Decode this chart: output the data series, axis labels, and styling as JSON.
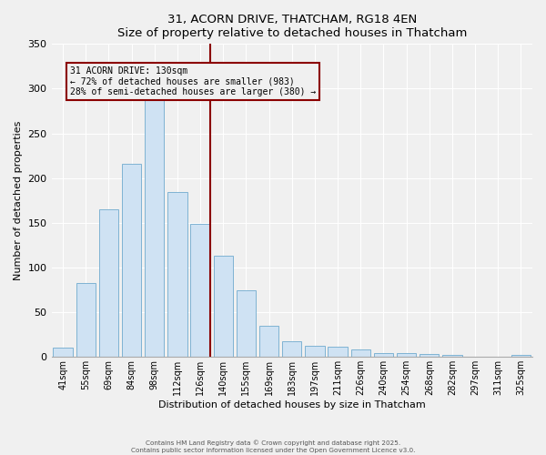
{
  "title": "31, ACORN DRIVE, THATCHAM, RG18 4EN",
  "subtitle": "Size of property relative to detached houses in Thatcham",
  "xlabel": "Distribution of detached houses by size in Thatcham",
  "ylabel": "Number of detached properties",
  "bar_labels": [
    "41sqm",
    "55sqm",
    "69sqm",
    "84sqm",
    "98sqm",
    "112sqm",
    "126sqm",
    "140sqm",
    "155sqm",
    "169sqm",
    "183sqm",
    "197sqm",
    "211sqm",
    "226sqm",
    "240sqm",
    "254sqm",
    "268sqm",
    "282sqm",
    "297sqm",
    "311sqm",
    "325sqm"
  ],
  "bar_heights": [
    10,
    83,
    165,
    216,
    288,
    184,
    149,
    113,
    75,
    35,
    18,
    13,
    11,
    8,
    4,
    4,
    3,
    2,
    0,
    0,
    2
  ],
  "bar_color": "#cfe2f3",
  "bar_edge_color": "#7fb3d3",
  "vline_x_index": 6,
  "vline_color": "#8b0000",
  "annotation_title": "31 ACORN DRIVE: 130sqm",
  "annotation_line1": "← 72% of detached houses are smaller (983)",
  "annotation_line2": "28% of semi-detached houses are larger (380) →",
  "annotation_box_color": "#8b0000",
  "ylim": [
    0,
    350
  ],
  "yticks": [
    0,
    50,
    100,
    150,
    200,
    250,
    300,
    350
  ],
  "background_color": "#f0f0f0",
  "grid_color": "#ffffff",
  "footer_line1": "Contains HM Land Registry data © Crown copyright and database right 2025.",
  "footer_line2": "Contains public sector information licensed under the Open Government Licence v3.0."
}
